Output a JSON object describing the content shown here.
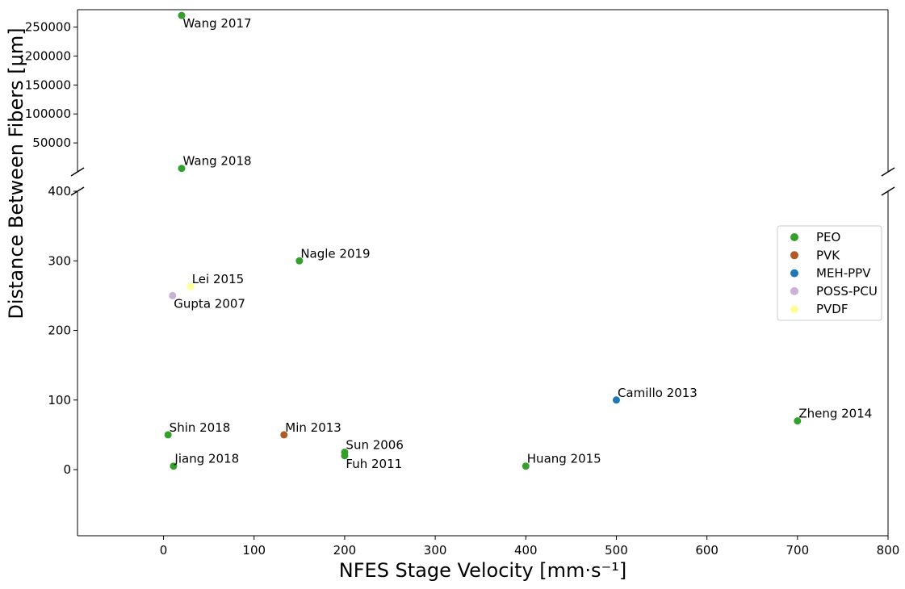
{
  "chart_data": {
    "type": "scatter",
    "xlabel": "NFES Stage Velocity    [mm·s⁻¹]",
    "ylabel": "Distance Between Fibers   [μm]",
    "xlim": [
      -95,
      800
    ],
    "ylim_lower": [
      -95,
      400
    ],
    "ylim_upper": [
      0,
      280000
    ],
    "broken_y_axis": true,
    "x_ticks": [
      0,
      100,
      200,
      300,
      400,
      500,
      600,
      700,
      800
    ],
    "y_ticks_lower": [
      0,
      100,
      200,
      300,
      400
    ],
    "y_ticks_upper": [
      50000,
      100000,
      150000,
      200000,
      250000
    ],
    "legend_position": "right",
    "grid": false,
    "series": [
      {
        "name": "PEO",
        "color": "#33a02c",
        "points": [
          {
            "x": 20,
            "y": 270000,
            "label": "Wang 2017",
            "label_pos": "below"
          },
          {
            "x": 20,
            "y": 6000,
            "label": "Wang 2018",
            "label_pos": "above"
          },
          {
            "x": 150,
            "y": 300,
            "label": "Nagle 2019",
            "label_pos": "above"
          },
          {
            "x": 5,
            "y": 50,
            "label": "Shin 2018",
            "label_pos": "above"
          },
          {
            "x": 11,
            "y": 5,
            "label": "Jiang 2018",
            "label_pos": "above"
          },
          {
            "x": 200,
            "y": 25,
            "label": "Sun 2006",
            "label_pos": "above"
          },
          {
            "x": 200,
            "y": 20,
            "label": "Fuh 2011",
            "label_pos": "below"
          },
          {
            "x": 400,
            "y": 5,
            "label": "Huang 2015",
            "label_pos": "above"
          },
          {
            "x": 700,
            "y": 70,
            "label": "Zheng 2014",
            "label_pos": "above"
          }
        ]
      },
      {
        "name": "PVK",
        "color": "#b15928",
        "points": [
          {
            "x": 133,
            "y": 50,
            "label": "Min 2013",
            "label_pos": "above"
          }
        ]
      },
      {
        "name": "MEH-PPV",
        "color": "#1f78b4",
        "points": [
          {
            "x": 500,
            "y": 100,
            "label": "Camillo 2013",
            "label_pos": "above"
          }
        ]
      },
      {
        "name": "POSS-PCU",
        "color": "#cab2d6",
        "points": [
          {
            "x": 10,
            "y": 250,
            "label": "Gupta 2007",
            "label_pos": "below"
          }
        ]
      },
      {
        "name": "PVDF",
        "color": "#ffff99",
        "points": [
          {
            "x": 30,
            "y": 263,
            "label": "Lei 2015",
            "label_pos": "above"
          }
        ]
      }
    ]
  }
}
